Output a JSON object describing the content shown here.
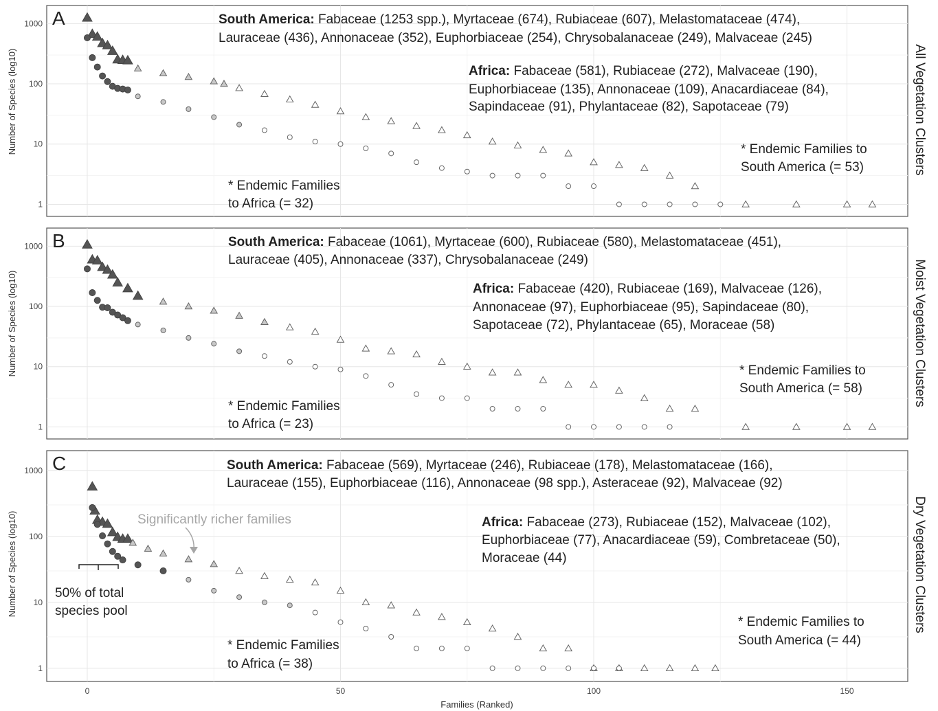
{
  "figure": {
    "xlabel": "Families (Ranked)",
    "ylabel": "Number of Species (log10)",
    "x_ticks": [
      0,
      50,
      100,
      150
    ],
    "y_ticks": [
      1,
      10,
      100,
      1000
    ],
    "xlim": [
      -8,
      162
    ],
    "ylim_log10": [
      -0.2,
      3.3
    ]
  },
  "chart_data": [
    {
      "type": "scatter",
      "panel": "A",
      "strip_label": "All Vegetation Clusters",
      "xlabel": "Families (Ranked)",
      "ylabel": "Number of Species (log10)",
      "y_scale": "log10",
      "annotations": {
        "south_america_head": "South America:",
        "south_america_line1": " Fabaceae (1253 spp.), Myrtaceae (674), Rubiaceae (607), Melastomataceae (474),",
        "south_america_line2": "Lauraceae (436), Annonaceae (352), Euphorbiaceae (254), Chrysobalanaceae (249), Malvaceae (245)",
        "africa_head": "Africa:",
        "africa_line1": " Fabaceae (581), Rubiaceae (272), Malvaceae (190),",
        "africa_line2": "Euphorbiaceae (135), Annonaceae (109), Anacardiaceae (84),",
        "africa_line3": "Sapindaceae (91), Phylantaceae (82), Sapotaceae (79)",
        "endemic_sa_line1": "* Endemic Families to",
        "endemic_sa_line2": "South America (= 53)",
        "endemic_af_line1": "* Endemic Families",
        "endemic_af_line2": "to Africa (= 32)"
      },
      "series": [
        {
          "name": "South America",
          "shape": "triangle",
          "x": [
            0,
            1,
            2,
            3,
            4,
            5,
            6,
            7,
            8,
            10,
            15,
            20,
            25,
            27,
            30,
            35,
            40,
            45,
            50,
            55,
            60,
            65,
            70,
            75,
            80,
            85,
            90,
            95,
            100,
            105,
            110,
            115,
            120,
            130,
            140,
            150,
            155
          ],
          "y": [
            1253,
            674,
            607,
            474,
            436,
            352,
            254,
            249,
            245,
            180,
            150,
            130,
            110,
            100,
            85,
            68,
            55,
            45,
            35,
            28,
            24,
            20,
            17,
            14,
            11,
            9.5,
            8,
            7,
            5,
            4.5,
            4,
            3,
            2,
            1,
            1,
            1,
            1
          ]
        },
        {
          "name": "Africa",
          "shape": "circle",
          "x": [
            0,
            1,
            2,
            3,
            4,
            5,
            6,
            7,
            8,
            10,
            15,
            20,
            25,
            30,
            35,
            40,
            45,
            50,
            55,
            60,
            65,
            70,
            75,
            80,
            85,
            90,
            95,
            100,
            105,
            110,
            115,
            120,
            125
          ],
          "y": [
            581,
            272,
            190,
            135,
            109,
            91,
            84,
            82,
            79,
            62,
            50,
            38,
            28,
            21,
            17,
            13,
            11,
            10,
            8.5,
            7,
            5,
            4,
            3.5,
            3,
            3,
            3,
            2,
            2,
            1,
            1,
            1,
            1,
            1
          ]
        }
      ]
    },
    {
      "type": "scatter",
      "panel": "B",
      "strip_label": "Moist Vegetation Clusters",
      "xlabel": "Families (Ranked)",
      "ylabel": "Number of Species (log10)",
      "y_scale": "log10",
      "annotations": {
        "south_america_head": "South America:",
        "south_america_line1": " Fabaceae (1061), Myrtaceae (600), Rubiaceae (580), Melastomataceae (451),",
        "south_america_line2": "Lauraceae (405), Annonaceae (337), Chrysobalanaceae (249)",
        "africa_head": "Africa:",
        "africa_line1": " Fabaceae (420), Rubiaceae (169), Malvaceae (126),",
        "africa_line2": "Annonaceae (97), Euphorbiaceae (95), Sapindaceae (80),",
        "africa_line3": "Sapotaceae (72), Phylantaceae (65), Moraceae (58)",
        "endemic_sa_line1": "* Endemic Families to",
        "endemic_sa_line2": "South America (= 58)",
        "endemic_af_line1": "* Endemic Families",
        "endemic_af_line2": "to Africa (= 23)"
      },
      "series": [
        {
          "name": "South America",
          "shape": "triangle",
          "x": [
            0,
            1,
            2,
            3,
            4,
            5,
            6,
            8,
            10,
            15,
            20,
            25,
            30,
            35,
            40,
            45,
            50,
            55,
            60,
            65,
            70,
            75,
            80,
            85,
            90,
            95,
            100,
            105,
            110,
            115,
            120,
            130,
            140,
            150,
            155
          ],
          "y": [
            1061,
            600,
            580,
            451,
            405,
            337,
            249,
            200,
            150,
            120,
            100,
            85,
            70,
            55,
            45,
            38,
            28,
            20,
            18,
            16,
            12,
            10,
            8,
            8,
            6,
            5,
            5,
            4,
            3,
            2,
            2,
            1,
            1,
            1,
            1
          ]
        },
        {
          "name": "Africa",
          "shape": "circle",
          "x": [
            0,
            1,
            2,
            3,
            4,
            5,
            6,
            7,
            8,
            10,
            15,
            20,
            25,
            30,
            35,
            40,
            45,
            50,
            55,
            60,
            65,
            70,
            75,
            80,
            85,
            90,
            95,
            100,
            105,
            110,
            115
          ],
          "y": [
            420,
            169,
            126,
            97,
            95,
            80,
            72,
            65,
            58,
            50,
            40,
            30,
            24,
            18,
            15,
            12,
            10,
            9,
            7,
            5,
            3.5,
            3,
            3,
            2,
            2,
            2,
            1,
            1,
            1,
            1,
            1
          ]
        }
      ]
    },
    {
      "type": "scatter",
      "panel": "C",
      "strip_label": "Dry Vegetation Clusters",
      "xlabel": "Families (Ranked)",
      "ylabel": "Number of Species (log10)",
      "y_scale": "log10",
      "annotations": {
        "south_america_head": "South America:",
        "south_america_line1": " Fabaceae (569), Myrtaceae (246), Rubiaceae (178), Melastomataceae (166),",
        "south_america_line2": "Lauraceae (155), Euphorbiaceae (116), Annonaceae (98 spp.), Asteraceae (92), Malvaceae (92)",
        "africa_head": "Africa:",
        "africa_line1": " Fabaceae (273), Rubiaceae (152), Malvaceae (102),",
        "africa_line2": "Euphorbiaceae (77), Anacardiaceae (59), Combretaceae (50),",
        "africa_line3": "Moraceae (44)",
        "endemic_sa_line1": "* Endemic Families to",
        "endemic_sa_line2": "South America (= 44)",
        "endemic_af_line1": "* Endemic Families",
        "endemic_af_line2": "to Africa (= 38)",
        "richer_families": "Significantly richer families",
        "pool_line1": "50% of total",
        "pool_line2": "species pool"
      },
      "series": [
        {
          "name": "South America",
          "shape": "triangle",
          "x": [
            1,
            1.5,
            2,
            3,
            4,
            5,
            6,
            7,
            8,
            9,
            12,
            15,
            20,
            25,
            30,
            35,
            40,
            45,
            50,
            55,
            60,
            65,
            70,
            75,
            80,
            85,
            90,
            95,
            100,
            105,
            110,
            115,
            120,
            124
          ],
          "y": [
            569,
            246,
            178,
            166,
            155,
            116,
            98,
            92,
            92,
            80,
            65,
            55,
            45,
            38,
            30,
            25,
            22,
            20,
            15,
            10,
            9,
            7,
            6,
            5,
            4,
            3,
            2,
            2,
            1,
            1,
            1,
            1,
            1,
            1
          ]
        },
        {
          "name": "Africa",
          "shape": "circle",
          "x": [
            1,
            2,
            3,
            4,
            5,
            6,
            7,
            10,
            15,
            20,
            25,
            30,
            35,
            40,
            45,
            50,
            55,
            60,
            65,
            70,
            75,
            80,
            85,
            90,
            95,
            100,
            105
          ],
          "y": [
            273,
            152,
            102,
            77,
            59,
            50,
            44,
            37,
            30,
            22,
            15,
            12,
            10,
            9,
            7,
            5,
            4,
            3,
            2,
            2,
            2,
            1,
            1,
            1,
            1,
            1,
            1
          ]
        }
      ]
    }
  ]
}
